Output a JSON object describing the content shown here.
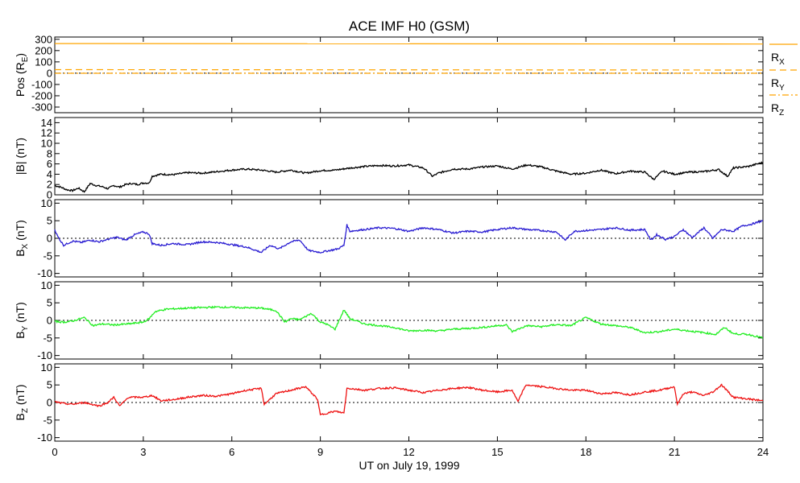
{
  "chart_data": {
    "type": "line",
    "title": "ACE IMF H0 (GSM)",
    "xlabel": "UT on July 19, 1999",
    "x_ticks": [
      "0",
      "3",
      "6",
      "9",
      "12",
      "15",
      "18",
      "21",
      "24"
    ],
    "xlim": [
      0,
      24
    ],
    "panels": [
      {
        "id": "pos",
        "ylabel": {
          "main": "Pos (R",
          "sub": "E",
          "tail": ")"
        },
        "ylim": [
          -350,
          320
        ],
        "y_ticks": [
          "300",
          "200",
          "100",
          "0",
          "-100",
          "-200",
          "-300"
        ],
        "zero_line": true,
        "legend_position": "right",
        "series": [
          {
            "name": "R",
            "sub": "X",
            "color": "#ffa500",
            "dash": "solid",
            "x": [
              0,
              24
            ],
            "values": [
              262,
              258
            ]
          },
          {
            "name": "R",
            "sub": "Y",
            "color": "#ffa500",
            "dash": "dashed",
            "x": [
              0,
              24
            ],
            "values": [
              31,
              28
            ]
          },
          {
            "name": "R",
            "sub": "Z",
            "color": "#ffa500",
            "dash": "dashdot",
            "x": [
              0,
              24
            ],
            "values": [
              -1,
              -1
            ]
          }
        ]
      },
      {
        "id": "bmag",
        "ylabel": {
          "main": "|B| (nT)",
          "sub": "",
          "tail": ""
        },
        "ylim": [
          0,
          15
        ],
        "y_ticks": [
          "14",
          "12",
          "10",
          "8",
          "6",
          "4",
          "2",
          "0"
        ],
        "zero_line": false,
        "series": [
          {
            "color": "#000000",
            "x": [
              0,
              0.2,
              0.4,
              0.6,
              0.8,
              1.0,
              1.2,
              1.4,
              1.6,
              1.8,
              2.0,
              2.2,
              2.4,
              2.6,
              2.8,
              3.0,
              3.2,
              3.3,
              3.6,
              4.0,
              4.5,
              5.0,
              5.5,
              6.0,
              6.5,
              7.0,
              7.5,
              8.0,
              8.5,
              9.0,
              9.5,
              10.0,
              10.5,
              11.0,
              11.5,
              12.0,
              12.5,
              12.8,
              13.0,
              13.5,
              14.0,
              14.5,
              15.0,
              15.5,
              16.0,
              16.5,
              17.0,
              17.5,
              18.0,
              18.5,
              19.0,
              19.5,
              20.0,
              20.3,
              20.6,
              21.0,
              21.5,
              22.0,
              22.5,
              22.8,
              23.0,
              23.5,
              24.0
            ],
            "values": [
              1.8,
              1.5,
              1.0,
              0.8,
              1.3,
              0.6,
              2.2,
              1.8,
              1.6,
              1.2,
              1.8,
              1.5,
              2.0,
              2.2,
              2.0,
              2.3,
              2.3,
              3.6,
              4.0,
              3.9,
              4.3,
              4.2,
              4.5,
              4.8,
              5.0,
              4.8,
              4.4,
              4.8,
              4.2,
              4.7,
              4.8,
              5.2,
              5.5,
              5.7,
              5.6,
              5.8,
              5.2,
              3.6,
              4.2,
              5.0,
              5.0,
              5.4,
              5.6,
              5.0,
              5.8,
              5.4,
              4.6,
              4.0,
              4.2,
              4.8,
              4.1,
              4.6,
              4.4,
              3.0,
              4.6,
              4.0,
              4.4,
              4.5,
              4.9,
              3.6,
              5.2,
              5.5,
              6.3
            ]
          }
        ]
      },
      {
        "id": "bx",
        "ylabel": {
          "main": "B",
          "sub": "X",
          "tail": " (nT)"
        },
        "ylim": [
          -11,
          11
        ],
        "y_ticks": [
          "10",
          "5",
          "0",
          "-5",
          "-10"
        ],
        "zero_line": true,
        "series": [
          {
            "color": "#2a1dd2",
            "x": [
              0,
              0.1,
              0.3,
              0.6,
              0.9,
              1.2,
              1.5,
              1.8,
              2.1,
              2.4,
              2.7,
              3.0,
              3.2,
              3.3,
              3.6,
              4.0,
              4.5,
              5.0,
              5.5,
              6.0,
              6.5,
              7.0,
              7.3,
              7.6,
              8.0,
              8.3,
              8.6,
              9.0,
              9.3,
              9.6,
              9.8,
              9.9,
              10.0,
              10.5,
              11.0,
              11.5,
              12.0,
              12.5,
              13.0,
              13.5,
              14.0,
              14.5,
              15.0,
              15.5,
              16.0,
              16.5,
              17.0,
              17.3,
              17.6,
              18.0,
              18.5,
              19.0,
              19.5,
              20.0,
              20.2,
              20.4,
              20.7,
              21.0,
              21.3,
              21.6,
              22.0,
              22.3,
              22.6,
              23.0,
              23.3,
              23.6,
              24.0
            ],
            "values": [
              2.5,
              0.5,
              -2.0,
              -0.8,
              -1.2,
              -0.5,
              -1.0,
              -0.3,
              0.3,
              -0.5,
              1.0,
              1.8,
              1.2,
              -1.5,
              -2.0,
              -1.5,
              -1.8,
              -1.0,
              -1.2,
              -1.8,
              -2.5,
              -4.0,
              -2.0,
              -3.0,
              -1.0,
              -0.5,
              -3.5,
              -4.0,
              -3.5,
              -3.0,
              -2.0,
              3.8,
              2.0,
              2.5,
              3.0,
              2.8,
              2.0,
              3.0,
              2.5,
              1.5,
              2.0,
              1.8,
              2.5,
              3.0,
              2.5,
              2.2,
              1.8,
              -0.5,
              2.0,
              2.2,
              2.5,
              3.0,
              2.3,
              2.5,
              -0.5,
              1.0,
              -0.3,
              0.5,
              2.5,
              0.2,
              3.0,
              0.0,
              2.5,
              2.0,
              3.5,
              4.0,
              5.0
            ]
          }
        ]
      },
      {
        "id": "by",
        "ylabel": {
          "main": "B",
          "sub": "Y",
          "tail": " (nT)"
        },
        "ylim": [
          -11,
          11
        ],
        "y_ticks": [
          "10",
          "5",
          "0",
          "-5",
          "-10"
        ],
        "zero_line": true,
        "series": [
          {
            "color": "#22ee22",
            "x": [
              0,
              0.3,
              0.6,
              1.0,
              1.3,
              1.6,
              2.0,
              2.5,
              3.0,
              3.2,
              3.4,
              3.8,
              4.5,
              5.5,
              6.5,
              7.0,
              7.5,
              7.8,
              8.0,
              8.3,
              8.7,
              9.0,
              9.2,
              9.5,
              9.8,
              10.0,
              10.5,
              11.0,
              11.5,
              12.0,
              12.5,
              13.0,
              13.5,
              14.0,
              14.5,
              15.0,
              15.3,
              15.5,
              16.0,
              16.5,
              17.0,
              17.5,
              18.0,
              18.5,
              19.0,
              19.5,
              20.0,
              20.5,
              21.0,
              21.5,
              22.0,
              22.4,
              22.7,
              23.0,
              23.5,
              24.0
            ],
            "values": [
              -0.3,
              -0.5,
              -0.2,
              0.8,
              -1.5,
              -1.0,
              -1.3,
              -1.0,
              -0.5,
              0.5,
              2.5,
              3.2,
              3.5,
              3.8,
              3.6,
              3.5,
              2.8,
              -0.5,
              0.5,
              0.2,
              2.0,
              -0.5,
              -1.0,
              -2.5,
              3.0,
              0.5,
              -1.0,
              -1.5,
              -2.0,
              -3.0,
              -2.8,
              -3.0,
              -2.5,
              -2.3,
              -2.0,
              -1.5,
              -1.3,
              -3.2,
              -1.5,
              -1.8,
              -1.2,
              -1.5,
              0.8,
              -1.0,
              -1.5,
              -2.0,
              -3.5,
              -3.2,
              -2.5,
              -3.0,
              -3.5,
              -4.0,
              -2.0,
              -3.8,
              -4.0,
              -5.0
            ]
          }
        ]
      },
      {
        "id": "bz",
        "ylabel": {
          "main": "B",
          "sub": "Z",
          "tail": " (nT)"
        },
        "ylim": [
          -11,
          11
        ],
        "y_ticks": [
          "10",
          "5",
          "0",
          "-5",
          "-10"
        ],
        "zero_line": true,
        "series": [
          {
            "color": "#ee1111",
            "x": [
              0,
              0.3,
              0.6,
              1.0,
              1.5,
              1.8,
              2.0,
              2.2,
              2.5,
              3.0,
              3.3,
              3.6,
              4.0,
              4.5,
              5.0,
              5.5,
              6.0,
              6.5,
              7.0,
              7.1,
              7.5,
              8.0,
              8.5,
              8.9,
              9.0,
              9.5,
              9.8,
              9.9,
              10.0,
              10.5,
              11.0,
              11.5,
              12.0,
              12.5,
              13.0,
              13.5,
              14.0,
              14.5,
              15.0,
              15.5,
              15.7,
              15.9,
              16.0,
              16.5,
              17.0,
              17.5,
              18.0,
              18.5,
              19.0,
              19.5,
              20.0,
              20.5,
              21.0,
              21.1,
              21.3,
              21.6,
              22.0,
              22.3,
              22.6,
              23.0,
              23.5,
              24.0
            ],
            "values": [
              0.2,
              -0.3,
              -0.5,
              0.0,
              -1.0,
              0.0,
              1.5,
              -1.0,
              1.5,
              1.5,
              2.0,
              0.5,
              0.8,
              1.5,
              2.0,
              1.8,
              2.5,
              3.5,
              4.0,
              -0.5,
              2.5,
              3.5,
              4.5,
              1.0,
              -3.5,
              -2.5,
              -3.0,
              4.0,
              4.0,
              3.5,
              4.0,
              4.2,
              3.5,
              2.8,
              3.5,
              4.0,
              4.3,
              3.5,
              3.0,
              3.5,
              0.2,
              4.0,
              5.0,
              4.5,
              4.0,
              3.5,
              3.5,
              2.5,
              2.8,
              2.2,
              3.0,
              3.5,
              4.5,
              -0.5,
              2.5,
              3.0,
              2.0,
              3.0,
              5.0,
              1.5,
              1.0,
              0.5
            ]
          }
        ]
      }
    ]
  }
}
